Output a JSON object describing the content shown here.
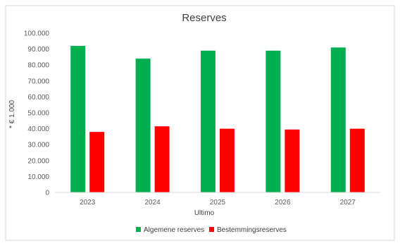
{
  "chart_data": {
    "type": "bar",
    "title": "Reserves",
    "xlabel": "Ultimo",
    "ylabel": "* € 1.000",
    "categories": [
      "2023",
      "2024",
      "2025",
      "2026",
      "2027"
    ],
    "series": [
      {
        "name": "Algemene reserves",
        "color": "#00b050",
        "values": [
          92000,
          84000,
          89000,
          89000,
          91000
        ]
      },
      {
        "name": "Bestemmingsreserves",
        "color": "#ff0000",
        "values": [
          38000,
          41500,
          40000,
          39500,
          40000
        ]
      }
    ],
    "ylim": [
      0,
      100000
    ],
    "yticks": [
      "0",
      "10.000",
      "20.000",
      "30.000",
      "40.000",
      "50.000",
      "60.000",
      "70.000",
      "80.000",
      "90.000",
      "100.000"
    ],
    "grid": false,
    "legend_position": "bottom"
  }
}
